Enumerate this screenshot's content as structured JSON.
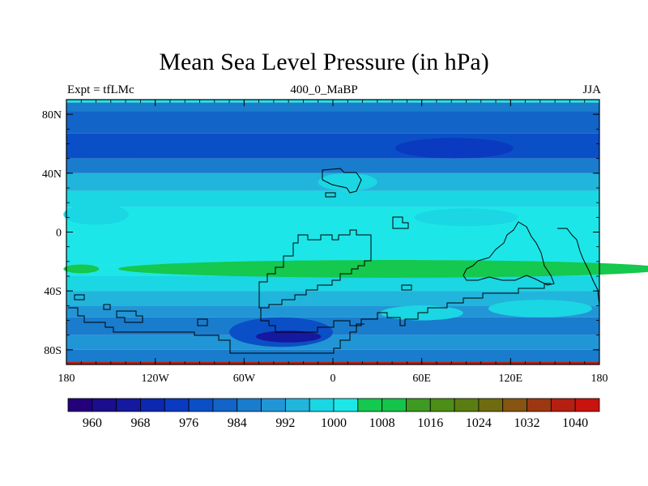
{
  "chart_data": {
    "type": "heatmap",
    "title": "Mean Sea Level Pressure (in hPa)",
    "left_subtitle": "Expt = tfLMc",
    "center_subtitle": "400_0_MaBP",
    "right_subtitle": "JJA",
    "xlim": [
      -180,
      180
    ],
    "ylim": [
      -90,
      90
    ],
    "x_ticks": [
      {
        "value": -180,
        "label": "180"
      },
      {
        "value": -120,
        "label": "120W"
      },
      {
        "value": -60,
        "label": "60W"
      },
      {
        "value": 0,
        "label": "0"
      },
      {
        "value": 60,
        "label": "60E"
      },
      {
        "value": 120,
        "label": "120E"
      },
      {
        "value": 180,
        "label": "180"
      }
    ],
    "y_ticks": [
      {
        "value": 80,
        "label": "80N"
      },
      {
        "value": 40,
        "label": "40N"
      },
      {
        "value": 0,
        "label": "0"
      },
      {
        "value": -40,
        "label": "40S"
      },
      {
        "value": -80,
        "label": "80S"
      }
    ],
    "colorbar": {
      "levels": [
        956,
        960,
        964,
        968,
        972,
        976,
        980,
        984,
        988,
        992,
        996,
        1000,
        1004,
        1008,
        1012,
        1016,
        1020,
        1024,
        1028,
        1032,
        1036,
        1040,
        1044
      ],
      "colors": [
        "#24007a",
        "#1b0d8c",
        "#14199f",
        "#0c28b0",
        "#093ac0",
        "#0b4fc6",
        "#1264c8",
        "#1a7ccd",
        "#2196d6",
        "#21b5dc",
        "#1bd6e3",
        "#1de6e8",
        "#15c84e",
        "#15c34a",
        "#3e9a21",
        "#4c8e17",
        "#5a7d12",
        "#6f6b11",
        "#875511",
        "#9c3811",
        "#b41f12",
        "#c9130f"
      ],
      "labels": [
        "960",
        "968",
        "976",
        "984",
        "992",
        "1000",
        "1008",
        "1016",
        "1024",
        "1032",
        "1040"
      ]
    },
    "bands": [
      {
        "lat_top": 90,
        "lat_bottom": 88,
        "value": 1002
      },
      {
        "lat_top": 88,
        "lat_bottom": 82,
        "value": 986
      },
      {
        "lat_top": 82,
        "lat_bottom": 67,
        "value": 982
      },
      {
        "lat_top": 67,
        "lat_bottom": 50,
        "value": 978
      },
      {
        "lat_top": 50,
        "lat_bottom": 40,
        "value": 986
      },
      {
        "lat_top": 40,
        "lat_bottom": 28,
        "value": 994
      },
      {
        "lat_top": 28,
        "lat_bottom": 17,
        "value": 998
      },
      {
        "lat_top": 17,
        "lat_bottom": -22,
        "value": 1001
      },
      {
        "lat_top": -22,
        "lat_bottom": -30,
        "value": 1002
      },
      {
        "lat_top": -30,
        "lat_bottom": -40,
        "value": 998
      },
      {
        "lat_top": -40,
        "lat_bottom": -50,
        "value": 994
      },
      {
        "lat_top": -50,
        "lat_bottom": -58,
        "value": 990
      },
      {
        "lat_top": -58,
        "lat_bottom": -70,
        "value": 986
      },
      {
        "lat_top": -70,
        "lat_bottom": -80,
        "value": 990
      },
      {
        "lat_top": -80,
        "lat_bottom": -88,
        "value": 984
      },
      {
        "lat_top": -88,
        "lat_bottom": -90,
        "value": 1036
      }
    ],
    "blobs": [
      {
        "cx": 82,
        "cy": 57,
        "rx": 40,
        "ry": 7,
        "value": 974
      },
      {
        "cx": -155,
        "cy": 58,
        "rx": 25,
        "ry": 7,
        "value": 978
      },
      {
        "cx": -160,
        "cy": 12,
        "rx": 22,
        "ry": 7,
        "value": 996
      },
      {
        "cx": 90,
        "cy": 10,
        "rx": 35,
        "ry": 6,
        "value": 996
      },
      {
        "cx": 10,
        "cy": 34,
        "rx": 20,
        "ry": 6,
        "value": 996
      },
      {
        "cx": -170,
        "cy": -25,
        "rx": 12,
        "ry": 3,
        "value": 1006
      },
      {
        "cx": 40,
        "cy": -25,
        "rx": 185,
        "ry": 6,
        "value": 1006
      },
      {
        "cx": -35,
        "cy": -68,
        "rx": 35,
        "ry": 10,
        "value": 978
      },
      {
        "cx": -30,
        "cy": -71,
        "rx": 22,
        "ry": 4,
        "value": 966
      },
      {
        "cx": 60,
        "cy": -55,
        "rx": 28,
        "ry": 5,
        "value": 996
      },
      {
        "cx": 140,
        "cy": -52,
        "rx": 35,
        "ry": 6,
        "value": 996
      }
    ]
  }
}
